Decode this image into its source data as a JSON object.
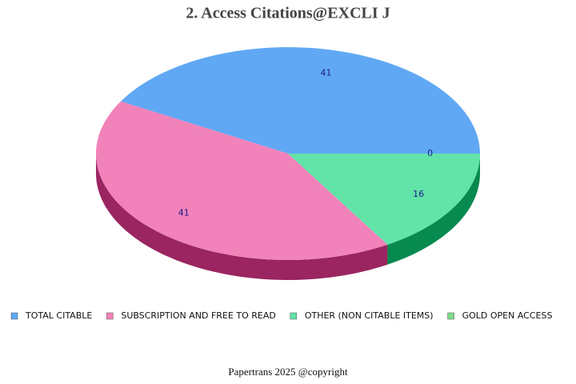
{
  "chart_data": {
    "type": "pie",
    "title": "2. Access Citations@EXCLI J",
    "categories": [
      "TOTAL CITABLE",
      "SUBSCRIPTION AND FREE TO READ",
      "OTHER (NON CITABLE ITEMS)",
      "GOLD OPEN ACCESS"
    ],
    "values": [
      41,
      41,
      16,
      0
    ],
    "colors": [
      "#60a8f4",
      "#f282ba",
      "#62e3a8",
      "#7fdc8a"
    ],
    "side_colors": [
      "#2c6fb8",
      "#9a2560",
      "#078a4f",
      "#3f9e4a"
    ],
    "caption": "Papertrans 2025 @copyright"
  }
}
